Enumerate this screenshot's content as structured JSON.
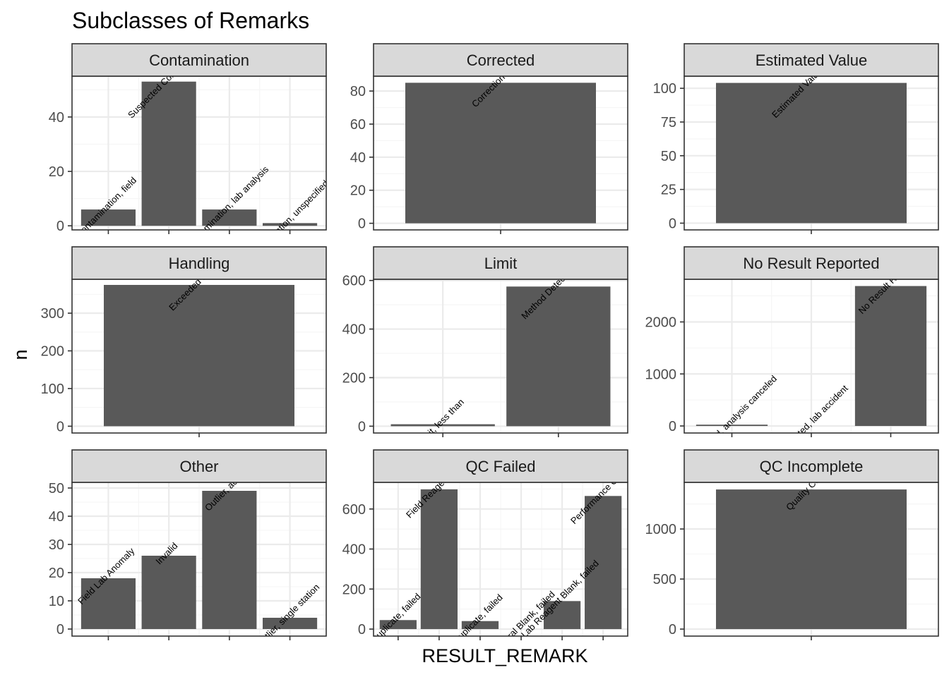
{
  "chart_data": {
    "type": "bar",
    "title": "Subclasses of Remarks",
    "xlabel": "RESULT_REMARK",
    "ylabel": "n",
    "facet_scales": "free",
    "grid": true,
    "colors": {
      "bar": "#595959",
      "strip_fill": "#d9d9d9",
      "grid_major": "#ebebeb",
      "grid_minor": "#f5f5f5",
      "frame": "#333333"
    },
    "panels": [
      {
        "name": "Contamination",
        "ylim": [
          -1.5,
          55
        ],
        "yticks": [
          0,
          20,
          40
        ],
        "minor_ticks": [
          10,
          30,
          50
        ],
        "bars": [
          {
            "label": "Contamination, field",
            "value": 6
          },
          {
            "label": "Suspected Contamination",
            "value": 53
          },
          {
            "label": "Contamination, lab analysis",
            "value": 6
          },
          {
            "label": "Contamination, unspecified",
            "value": 1
          }
        ]
      },
      {
        "name": "Corrected",
        "ylim": [
          -4,
          89
        ],
        "yticks": [
          0,
          20,
          40,
          60,
          80
        ],
        "minor_ticks": [
          10,
          30,
          50,
          70
        ],
        "bars": [
          {
            "label": "Correction Factor",
            "value": 85
          }
        ]
      },
      {
        "name": "Estimated Value",
        "ylim": [
          -5,
          109
        ],
        "yticks": [
          0,
          25,
          50,
          75,
          100
        ],
        "minor_ticks": [
          12.5,
          37.5,
          62.5,
          87.5
        ],
        "bars": [
          {
            "label": "Estimated Value, outside",
            "value": 104
          }
        ]
      },
      {
        "name": "Handling",
        "ylim": [
          -18,
          390
        ],
        "yticks": [
          0,
          100,
          200,
          300
        ],
        "minor_ticks": [
          50,
          150,
          250,
          350
        ],
        "bars": [
          {
            "label": "Exceeded Holding",
            "value": 375
          }
        ]
      },
      {
        "name": "Limit",
        "ylim": [
          -28,
          605
        ],
        "yticks": [
          0,
          200,
          400,
          600
        ],
        "minor_ticks": [
          100,
          300,
          500
        ],
        "bars": [
          {
            "label": "Limit, less than",
            "value": 8
          },
          {
            "label": "Method Detection Limit",
            "value": 575
          }
        ]
      },
      {
        "name": "No Result Reported",
        "ylim": [
          -135,
          2820
        ],
        "yticks": [
          0,
          1000,
          2000
        ],
        "minor_ticks": [
          500,
          1500,
          2500
        ],
        "bars": [
          {
            "label": "Not reported, analysis canceled",
            "value": 25
          },
          {
            "label": "Not reported, lab accident",
            "value": 0
          },
          {
            "label": "No Result Reported",
            "value": 2690
          }
        ]
      },
      {
        "name": "Other",
        "ylim": [
          -2.5,
          52
        ],
        "yticks": [
          0,
          10,
          20,
          30,
          40,
          50
        ],
        "minor_ticks": [
          5,
          15,
          25,
          35,
          45
        ],
        "bars": [
          {
            "label": "Field Lab Anomaly",
            "value": 18
          },
          {
            "label": "Invalid",
            "value": 26
          },
          {
            "label": "Outlier, across",
            "value": 49
          },
          {
            "label": "Outlier, single station",
            "value": 4
          }
        ]
      },
      {
        "name": "QC Failed",
        "ylim": [
          -35,
          733
        ],
        "yticks": [
          0,
          200,
          400,
          600
        ],
        "minor_ticks": [
          100,
          300,
          500,
          700
        ],
        "bars": [
          {
            "label": "Duplicate, failed",
            "value": 45
          },
          {
            "label": "Field Reagent Blank",
            "value": 698
          },
          {
            "label": "Duplicate, failed",
            "value": 40
          },
          {
            "label": "Procedural Blank, failed",
            "value": 0
          },
          {
            "label": "Lab Reagent Blank, failed",
            "value": 140
          },
          {
            "label": "Performance Check",
            "value": 665
          }
        ]
      },
      {
        "name": "QC Incomplete",
        "ylim": [
          -70,
          1466
        ],
        "yticks": [
          0,
          500,
          1000
        ],
        "minor_ticks": [
          250,
          750,
          1250
        ],
        "bars": [
          {
            "label": "Quality Control",
            "value": 1395
          }
        ]
      }
    ]
  }
}
